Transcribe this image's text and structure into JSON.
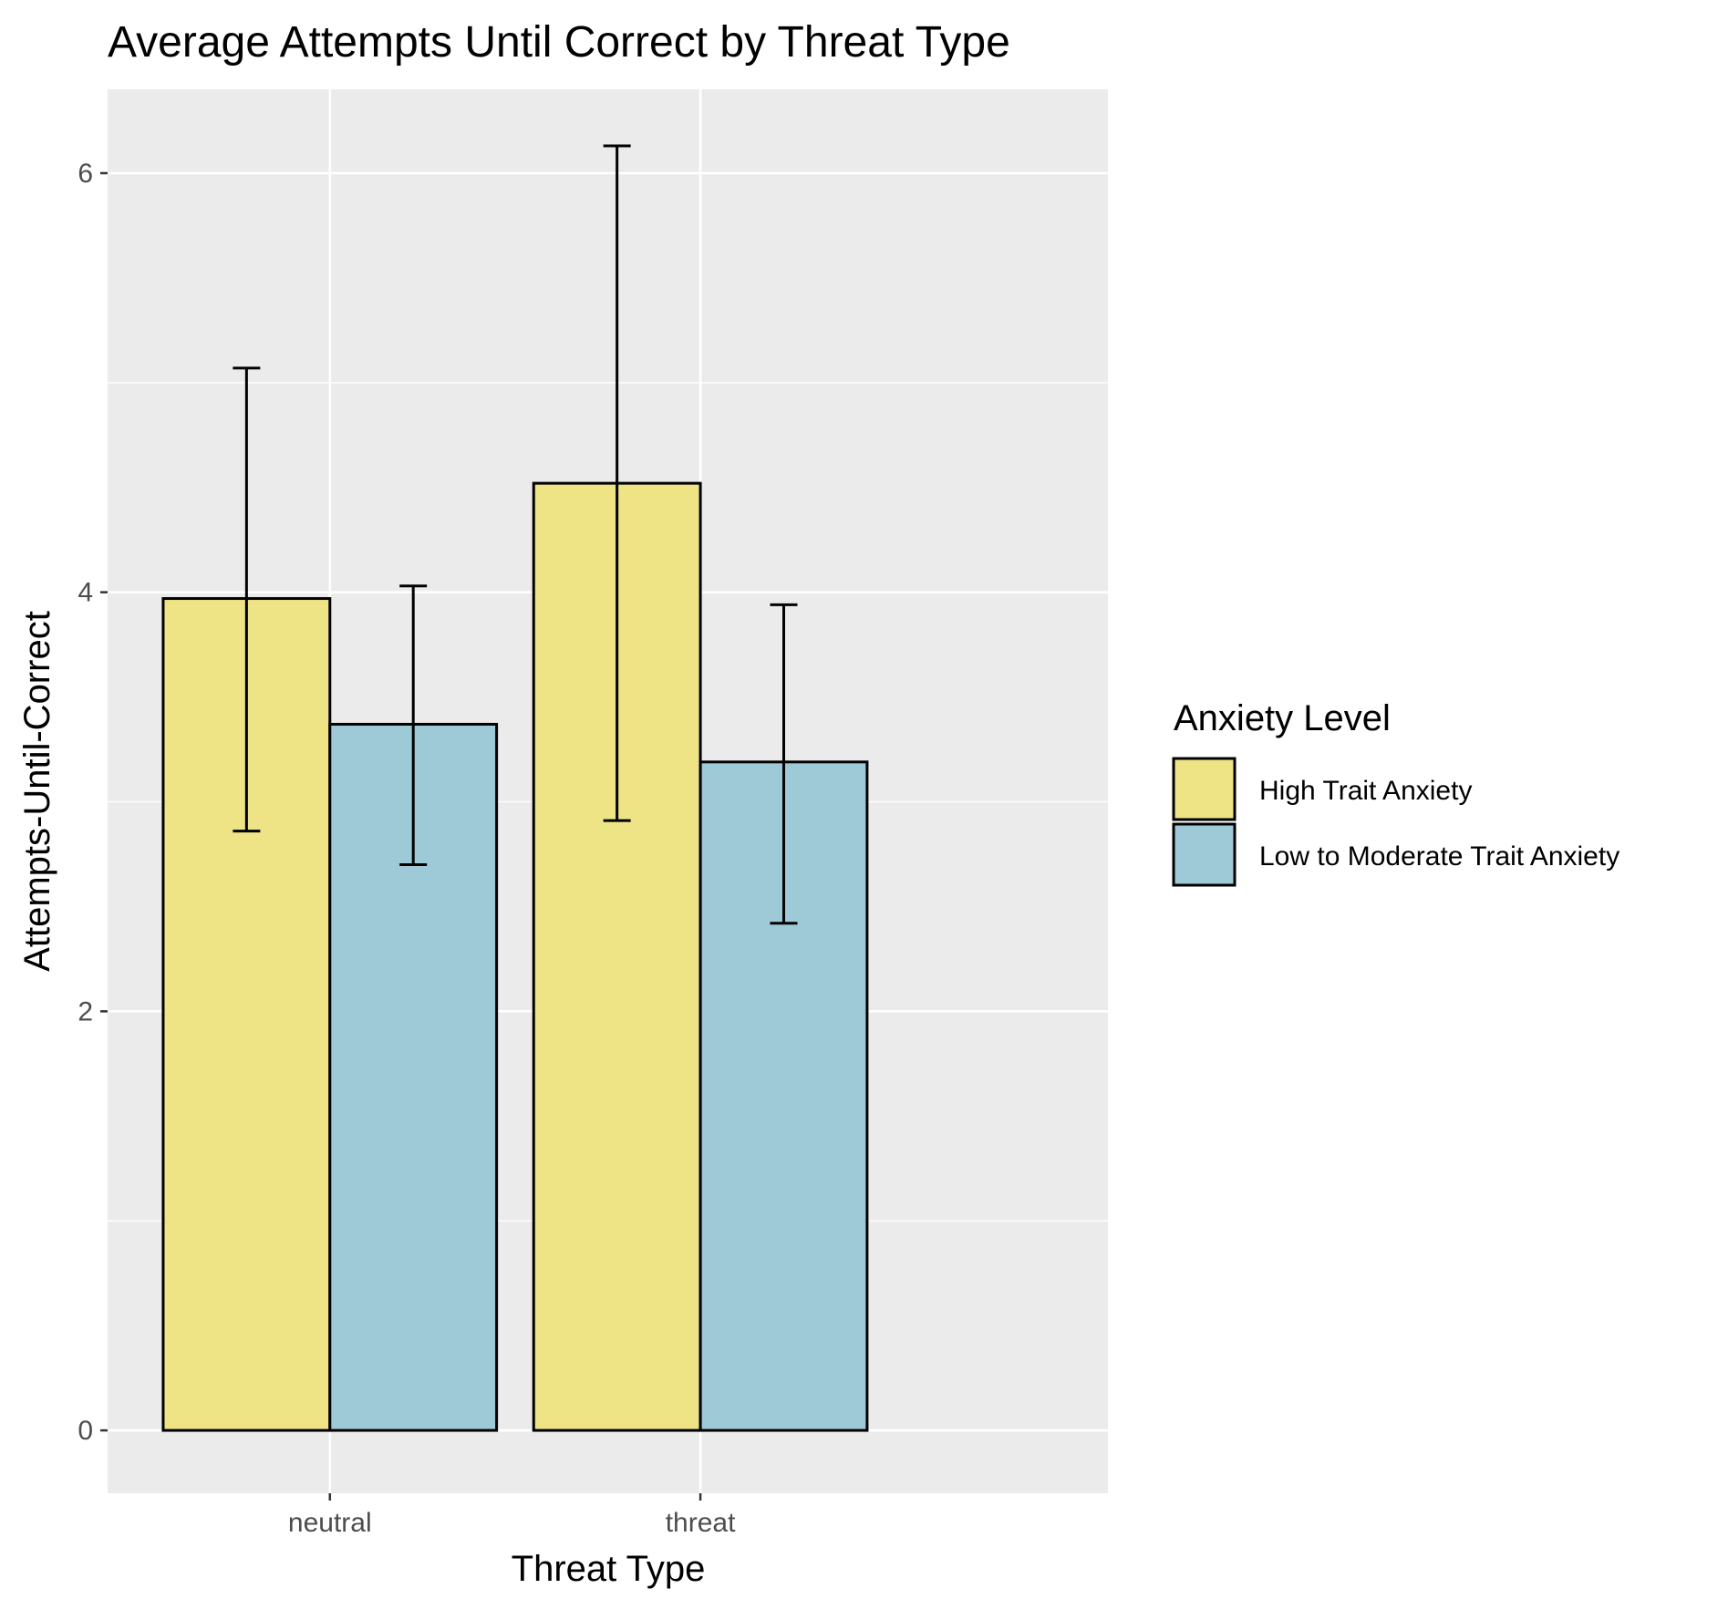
{
  "chart_data": {
    "type": "bar",
    "title": "Average Attempts Until Correct by Threat Type",
    "xlabel": "Threat Type",
    "ylabel": "Attempts-Until-Correct",
    "categories": [
      "neutral",
      "threat"
    ],
    "yticks": [
      0,
      2,
      4,
      6
    ],
    "ytick_labels": [
      "0",
      "2",
      "4",
      "6"
    ],
    "ylim": [
      -0.3,
      6.4
    ],
    "grid": true,
    "legend_title": "Anxiety Level",
    "legend_position": "right",
    "series": [
      {
        "name": "High Trait Anxiety",
        "color": "#eee385",
        "values": [
          3.97,
          4.52
        ],
        "error_low": [
          2.86,
          2.91
        ],
        "error_high": [
          5.07,
          6.13
        ]
      },
      {
        "name": "Low to Moderate Trait Anxiety",
        "color": "#9ecad7",
        "values": [
          3.37,
          3.19
        ],
        "error_low": [
          2.7,
          2.42
        ],
        "error_high": [
          4.03,
          3.94
        ]
      }
    ]
  }
}
